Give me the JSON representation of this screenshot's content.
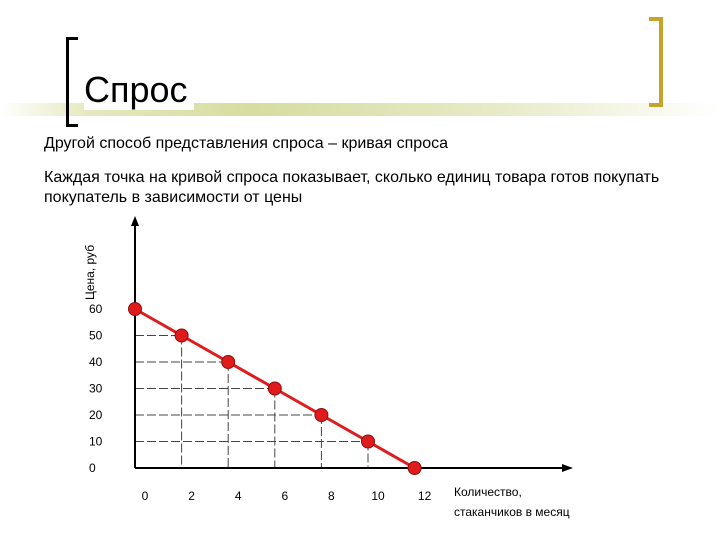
{
  "slide": {
    "title": "Спрос",
    "subtitle": "Другой способ представления спроса – кривая спроса",
    "description": "Каждая точка на кривой спроса показывает, сколько единиц товара готов покупать покупатель в зависимости от цены"
  },
  "colors": {
    "accent_bracket": "#c8a32b",
    "curve": "#e01b1b",
    "point": "#e01b1b"
  },
  "chart_data": {
    "type": "line",
    "title": "",
    "xlabel_lines": [
      "Количество,",
      "стаканчиков в месяц"
    ],
    "ylabel": "Цена, руб",
    "x_ticks": [
      "0",
      "2",
      "4",
      "6",
      "8",
      "10",
      "12"
    ],
    "y_ticks": [
      "0",
      "10",
      "20",
      "30",
      "40",
      "50",
      "60"
    ],
    "series": [
      {
        "points": [
          {
            "x": 0,
            "y": 60
          },
          {
            "x": 2,
            "y": 50
          },
          {
            "x": 4,
            "y": 40
          },
          {
            "x": 6,
            "y": 30
          },
          {
            "x": 8,
            "y": 20
          },
          {
            "x": 10,
            "y": 10
          },
          {
            "x": 12,
            "y": 0
          }
        ]
      }
    ],
    "xlim": [
      0,
      12
    ],
    "ylim": [
      0,
      60
    ],
    "grid": "dashed guides from points to axes"
  }
}
